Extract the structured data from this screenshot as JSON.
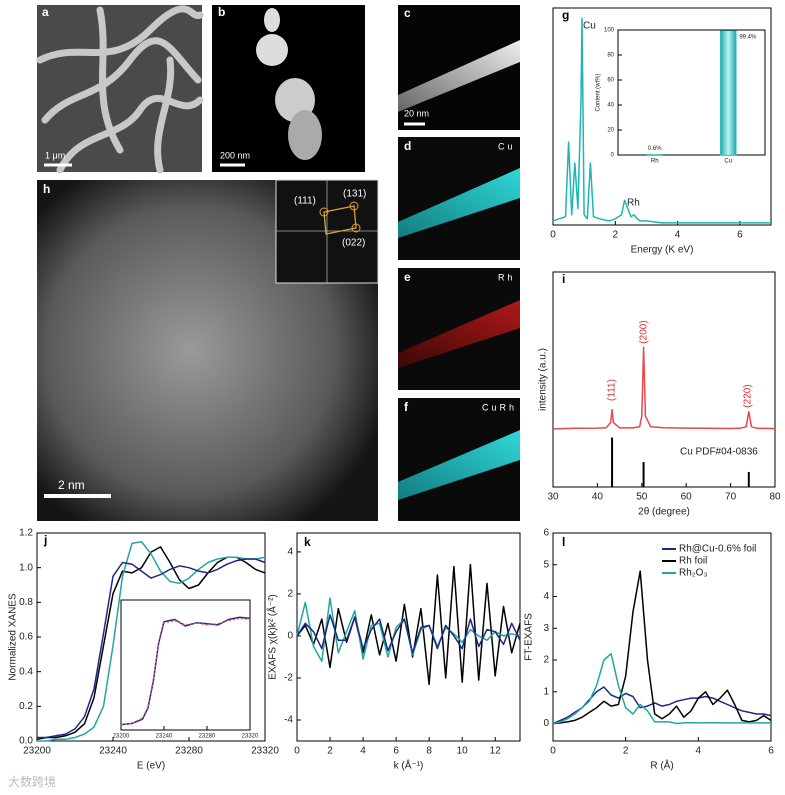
{
  "images": [
    {
      "label": "a",
      "scale_bar": "1 μm"
    },
    {
      "label": "b",
      "scale_bar": "200 nm"
    },
    {
      "label": "c",
      "scale_bar": "20 nm"
    },
    {
      "label": "d",
      "element": "Cu"
    },
    {
      "label": "e",
      "element": "Rh"
    },
    {
      "label": "f",
      "element": "CuRh"
    },
    {
      "label": "h",
      "scale_bar": "2 nm",
      "fft_spots": [
        "(111)",
        "(131)",
        "(022)"
      ]
    }
  ],
  "chart_data": [
    {
      "type": "line",
      "label": "g",
      "xlabel": "Energy (K eV)",
      "xlim": [
        0,
        7
      ],
      "xticks": [
        0,
        2,
        4,
        6
      ],
      "ylim": [
        0,
        105
      ],
      "annotations": [
        "Cu",
        "Rh"
      ],
      "x": [
        0,
        0.2,
        0.4,
        0.5,
        0.6,
        0.7,
        0.8,
        0.9,
        0.93,
        0.96,
        1.0,
        1.1,
        1.2,
        1.3,
        1.5,
        1.8,
        2.0,
        2.2,
        2.3,
        2.4,
        2.5,
        2.6,
        2.7,
        2.8,
        3.0,
        3.5,
        4,
        5,
        6,
        7
      ],
      "series": [
        {
          "color": "#1fb5b5",
          "values": [
            2,
            3,
            4,
            40,
            5,
            30,
            8,
            60,
            100,
            60,
            5,
            3,
            30,
            4,
            3,
            2,
            3,
            5,
            12,
            8,
            4,
            5,
            3,
            2,
            2,
            1,
            1,
            1,
            1,
            1
          ]
        }
      ]
    },
    {
      "type": "bar",
      "ylabel": "Content (wt%)",
      "categories": [
        "Rh",
        "Cu"
      ],
      "values": [
        0.6,
        99.4
      ],
      "value_labels": [
        "0.6%",
        "99.4%"
      ],
      "color": "#3fc6c6",
      "ylim": [
        0,
        100
      ],
      "yticks": [
        0,
        20,
        40,
        60,
        80,
        100
      ]
    },
    {
      "type": "line",
      "label": "i",
      "xlabel": "2θ (degree)",
      "ylabel": "intensity (a.u.)",
      "xlim": [
        30,
        80
      ],
      "xticks": [
        30,
        40,
        50,
        60,
        70,
        80
      ],
      "ylim": [
        0,
        100
      ],
      "annotations": [
        "(111)",
        "(200)",
        "(220)",
        "Cu PDF#04-0836"
      ],
      "x": [
        30,
        35,
        40,
        42,
        43,
        43.3,
        43.6,
        45,
        48,
        49.5,
        50,
        50.4,
        50.8,
        52,
        55,
        60,
        65,
        70,
        72,
        73.5,
        74.1,
        74.7,
        76,
        80
      ],
      "series": [
        {
          "color": "#e8484a",
          "values": [
            27,
            27.3,
            27.4,
            27.6,
            30,
            36,
            30,
            27.5,
            27.5,
            28,
            33,
            65,
            33,
            28,
            27.6,
            27.4,
            27.3,
            27.2,
            27.3,
            28,
            35,
            28,
            27.3,
            27.2
          ]
        }
      ],
      "reference": {
        "color": "#000000",
        "x": [
          43.3,
          50.4,
          74.1
        ],
        "values": [
          23,
          11.6,
          7
        ]
      }
    },
    {
      "type": "line",
      "label": "j",
      "xlabel": "E (eV)",
      "ylabel": "Normalized XANES",
      "xlim": [
        23200,
        23320
      ],
      "xticks": [
        23200,
        23240,
        23280,
        23320
      ],
      "ylim": [
        0,
        1.2
      ],
      "yticks": [
        {
          "value": 0,
          "label": "0.0"
        },
        0.2,
        0.4,
        0.6,
        0.8,
        {
          "value": 1,
          "label": "1.0"
        },
        1.2
      ],
      "x": [
        23200,
        23205,
        23210,
        23215,
        23220,
        23225,
        23230,
        23235,
        23240,
        23245,
        23250,
        23255,
        23260,
        23265,
        23270,
        23275,
        23280,
        23285,
        23290,
        23295,
        23300,
        23305,
        23310,
        23315,
        23320
      ],
      "series": [
        {
          "color": "#000000",
          "values": [
            0.01,
            0.02,
            0.02,
            0.03,
            0.05,
            0.1,
            0.25,
            0.55,
            0.85,
            0.98,
            0.97,
            1.0,
            1.09,
            1.12,
            1.03,
            0.93,
            0.88,
            0.9,
            0.97,
            1.03,
            1.06,
            1.06,
            1.03,
            0.99,
            0.97
          ]
        },
        {
          "color": "#22a6a0",
          "values": [
            0.0,
            0.0,
            0.01,
            0.01,
            0.02,
            0.04,
            0.08,
            0.2,
            0.55,
            0.95,
            1.14,
            1.15,
            1.08,
            0.98,
            0.92,
            0.91,
            0.94,
            0.99,
            1.03,
            1.05,
            1.06,
            1.06,
            1.05,
            1.05,
            1.06
          ]
        },
        {
          "color": "#1c2a80",
          "values": [
            0.02,
            0.02,
            0.03,
            0.04,
            0.07,
            0.14,
            0.3,
            0.62,
            0.95,
            1.03,
            1.02,
            0.98,
            0.94,
            0.96,
            0.99,
            1.01,
            1.0,
            0.98,
            0.97,
            0.99,
            1.02,
            1.04,
            1.05,
            1.05,
            1.03
          ]
        }
      ]
    },
    {
      "type": "line",
      "xlim": [
        23200,
        23320
      ],
      "xticks": [
        23200,
        23240,
        23280,
        23320
      ],
      "ylim": [
        0,
        1.2
      ],
      "x": [
        23200,
        23210,
        23220,
        23225,
        23230,
        23235,
        23240,
        23250,
        23260,
        23270,
        23280,
        23290,
        23300,
        23310,
        23320
      ],
      "series": [
        {
          "color": "#1c2a80",
          "values": [
            0.05,
            0.06,
            0.1,
            0.2,
            0.45,
            0.8,
            1.0,
            1.02,
            0.96,
            0.99,
            0.98,
            0.97,
            1.02,
            1.04,
            1.03
          ]
        },
        {
          "color": "#e0507a",
          "dashed": true,
          "values": [
            0.05,
            0.06,
            0.11,
            0.21,
            0.46,
            0.79,
            0.99,
            1.01,
            0.97,
            0.99,
            0.97,
            0.98,
            1.01,
            1.03,
            1.02
          ]
        }
      ]
    },
    {
      "type": "line",
      "label": "k",
      "xlabel": "k (Å⁻¹)",
      "ylabel": "EXAFS χ(k)k² (Å⁻²)",
      "xlim": [
        0,
        13.5
      ],
      "xticks": [
        0,
        2,
        4,
        6,
        8,
        10,
        12
      ],
      "ylim": [
        -5,
        4.9
      ],
      "yticks": [
        -4,
        -2,
        0,
        2,
        4
      ],
      "x": [
        0,
        0.5,
        1,
        1.5,
        2,
        2.5,
        3,
        3.5,
        4,
        4.5,
        5,
        5.5,
        6,
        6.5,
        7,
        7.5,
        8,
        8.5,
        9,
        9.5,
        10,
        10.5,
        11,
        11.5,
        12,
        12.5,
        13,
        13.5
      ],
      "series": [
        {
          "color": "#000000",
          "values": [
            0,
            0.5,
            -0.4,
            0.8,
            -1.5,
            1.3,
            -0.3,
            0.9,
            -0.8,
            1.0,
            -0.9,
            0.6,
            -1.2,
            1.5,
            -1.0,
            1.3,
            -2.3,
            2.9,
            -2.0,
            3.3,
            -2.2,
            3.4,
            -2.1,
            2.5,
            -1.9,
            1.4,
            -0.8,
            0.6
          ]
        },
        {
          "color": "#22a6a0",
          "values": [
            0,
            1.6,
            -0.5,
            -1.2,
            1.8,
            -0.8,
            0.2,
            1.2,
            -1.1,
            0.5,
            0.6,
            -1.0,
            0.4,
            0.8,
            -0.9,
            0.3,
            0.5,
            -0.5,
            0.4,
            0.1,
            -0.3,
            0.3,
            0.0,
            -0.2,
            0.2,
            0.0,
            0.1,
            0.0
          ]
        },
        {
          "color": "#1c2a80",
          "values": [
            0,
            0.6,
            0.2,
            -0.6,
            1.0,
            -0.2,
            -0.2,
            0.9,
            -0.6,
            0.3,
            0.8,
            -0.7,
            0.2,
            0.8,
            -0.8,
            0.4,
            0.5,
            -0.6,
            0.5,
            0.0,
            -0.6,
            0.8,
            -0.5,
            0.3,
            0.2,
            -0.4,
            0.6,
            -0.2
          ]
        }
      ]
    },
    {
      "type": "line",
      "label": "l",
      "xlabel": "R (Å)",
      "ylabel": "FT-EXAFS",
      "xlim": [
        0,
        6
      ],
      "xticks": [
        0,
        2,
        4,
        6
      ],
      "ylim": [
        -0.55,
        6
      ],
      "yticks": [
        0,
        1,
        2,
        3,
        4,
        5,
        6
      ],
      "legend": "upper right",
      "x": [
        0,
        0.2,
        0.4,
        0.6,
        0.8,
        1.0,
        1.2,
        1.4,
        1.6,
        1.8,
        2.0,
        2.2,
        2.4,
        2.6,
        2.8,
        3.0,
        3.2,
        3.4,
        3.6,
        3.8,
        4.0,
        4.2,
        4.4,
        4.6,
        4.8,
        5.0,
        5.2,
        5.4,
        5.6,
        5.8,
        6.0
      ],
      "series": [
        {
          "name": "Rh@Cu-0.6% foil",
          "color": "#1c2a80",
          "values": [
            0,
            0.1,
            0.2,
            0.35,
            0.5,
            0.75,
            1.0,
            1.15,
            0.9,
            0.8,
            0.95,
            0.85,
            0.5,
            0.55,
            0.65,
            0.55,
            0.6,
            0.7,
            0.75,
            0.8,
            0.8,
            0.85,
            0.8,
            0.7,
            0.6,
            0.5,
            0.4,
            0.35,
            0.3,
            0.3,
            0.25
          ]
        },
        {
          "name": "Rh foil",
          "color": "#000000",
          "values": [
            0,
            0.02,
            0.05,
            0.1,
            0.2,
            0.35,
            0.5,
            0.7,
            0.55,
            0.6,
            1.5,
            3.5,
            4.8,
            2.0,
            0.3,
            0.15,
            0.3,
            0.55,
            0.2,
            0.4,
            0.8,
            1.0,
            0.6,
            0.8,
            1.05,
            0.6,
            0.1,
            0.05,
            0.1,
            0.25,
            0.1
          ]
        },
        {
          "name": "Rh₂O₃",
          "color": "#22a6a0",
          "values": [
            0,
            0.05,
            0.15,
            0.3,
            0.5,
            0.7,
            1.2,
            2.0,
            2.2,
            1.2,
            0.5,
            0.3,
            0.6,
            0.4,
            0.05,
            0.05,
            0.05,
            0.0,
            0.02,
            0.03,
            0.02,
            0.02,
            0.03,
            0.02,
            0.02,
            0.02,
            0.02,
            0.02,
            0.02,
            0.02,
            0.02
          ]
        }
      ]
    }
  ],
  "watermark": "大数跨境"
}
